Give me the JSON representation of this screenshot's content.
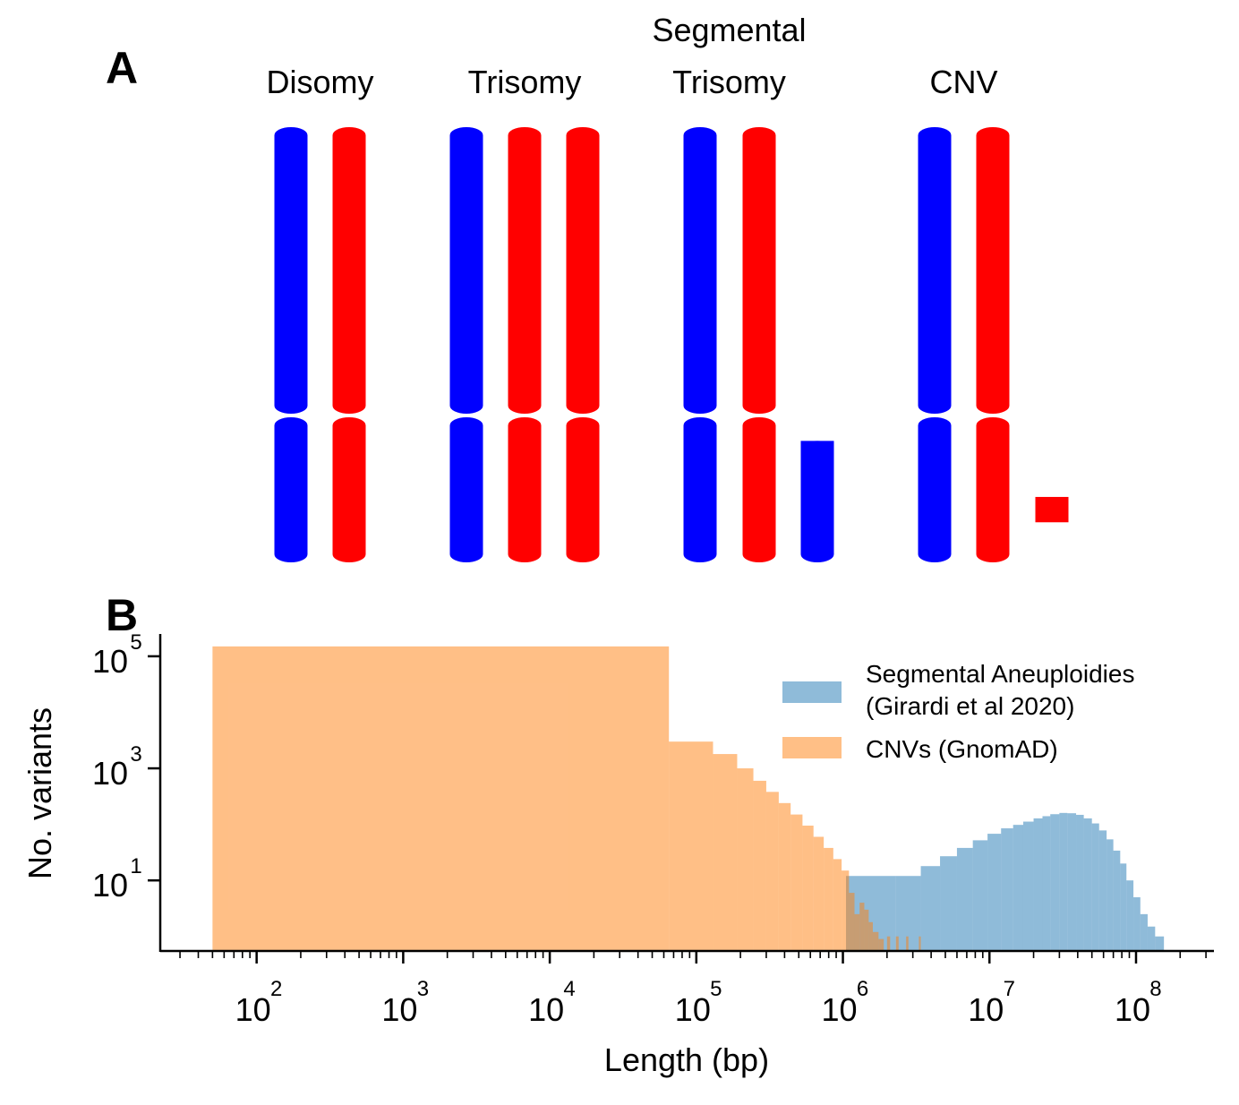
{
  "panel_a": {
    "label": "A",
    "groups": [
      {
        "title_lines": [
          "Disomy"
        ],
        "chromosomes": [
          {
            "color": "blue",
            "type": "full"
          },
          {
            "color": "red",
            "type": "full"
          }
        ]
      },
      {
        "title_lines": [
          "Trisomy"
        ],
        "chromosomes": [
          {
            "color": "blue",
            "type": "full"
          },
          {
            "color": "red",
            "type": "full"
          },
          {
            "color": "red",
            "type": "full"
          }
        ]
      },
      {
        "title_lines": [
          "Segmental",
          "Trisomy"
        ],
        "chromosomes": [
          {
            "color": "blue",
            "type": "full"
          },
          {
            "color": "red",
            "type": "full"
          },
          {
            "color": "blue",
            "type": "segment",
            "segment_start": 0.13,
            "segment_end": 1.0
          }
        ]
      },
      {
        "title_lines": [
          "CNV"
        ],
        "chromosomes": [
          {
            "color": "blue",
            "type": "full"
          },
          {
            "color": "red",
            "type": "full"
          },
          {
            "color": "red",
            "type": "segment",
            "segment_start": 0.55,
            "segment_end": 0.74
          }
        ]
      }
    ],
    "colors": {
      "blue": "#0000ff",
      "red": "#ff0000"
    }
  },
  "panel_b": {
    "label": "B",
    "chart_data": {
      "type": "histogram",
      "x_scale": "log",
      "y_scale": "log",
      "xlabel": "Length (bp)",
      "ylabel": "No. variants",
      "xlim": [
        22,
        340000000
      ],
      "ylim": [
        0.55,
        250000
      ],
      "x_ticks": [
        {
          "value": 100,
          "base": "10",
          "exp": "2"
        },
        {
          "value": 1000,
          "base": "10",
          "exp": "3"
        },
        {
          "value": 10000,
          "base": "10",
          "exp": "4"
        },
        {
          "value": 100000,
          "base": "10",
          "exp": "5"
        },
        {
          "value": 1000000,
          "base": "10",
          "exp": "6"
        },
        {
          "value": 10000000,
          "base": "10",
          "exp": "7"
        },
        {
          "value": 100000000,
          "base": "10",
          "exp": "8"
        }
      ],
      "y_ticks": [
        {
          "value": 10,
          "base": "10",
          "exp": "1"
        },
        {
          "value": 1000,
          "base": "10",
          "exp": "3"
        },
        {
          "value": 100000,
          "base": "10",
          "exp": "5"
        }
      ],
      "legend_position": "top-right",
      "series": [
        {
          "name": "Segmental Aneuploidies\n(Girardi et al 2020)",
          "legend_lines": [
            "Segmental Aneuploidies",
            "(Girardi et al 2020)"
          ],
          "color": "#1f77b4",
          "alpha": 0.5,
          "bins": [
            [
              1050000,
              2300000,
              12
            ],
            [
              2300000,
              3400000,
              12
            ],
            [
              3400000,
              4600000,
              18
            ],
            [
              4600000,
              6000000,
              27
            ],
            [
              6000000,
              7700000,
              38
            ],
            [
              7700000,
              9700000,
              52
            ],
            [
              9700000,
              12000000,
              68
            ],
            [
              12000000,
              14500000,
              85
            ],
            [
              14500000,
              17000000,
              98
            ],
            [
              17000000,
              20000000,
              112
            ],
            [
              20000000,
              23000000,
              128
            ],
            [
              23000000,
              26000000,
              140
            ],
            [
              26000000,
              30000000,
              152
            ],
            [
              30000000,
              34000000,
              160
            ],
            [
              34000000,
              39000000,
              158
            ],
            [
              39000000,
              44000000,
              148
            ],
            [
              44000000,
              50000000,
              128
            ],
            [
              50000000,
              56000000,
              104
            ],
            [
              56000000,
              63000000,
              78
            ],
            [
              63000000,
              70000000,
              54
            ],
            [
              70000000,
              78000000,
              34
            ],
            [
              78000000,
              86000000,
              20
            ],
            [
              86000000,
              96000000,
              10
            ],
            [
              96000000,
              107000000,
              5
            ],
            [
              107000000,
              120000000,
              2.5
            ],
            [
              120000000,
              135000000,
              1.5
            ],
            [
              135000000,
              155000000,
              1
            ]
          ]
        },
        {
          "name": "CNVs (GnomAD)",
          "legend_lines": [
            "CNVs (GnomAD)"
          ],
          "color": "#ff7f0e",
          "alpha": 0.5,
          "bins": [
            [
              50,
              65000,
              150000
            ],
            [
              65000,
              130000,
              3000
            ],
            [
              130000,
              190000,
              1800
            ],
            [
              190000,
              245000,
              1000
            ],
            [
              245000,
              300000,
              600
            ],
            [
              300000,
              365000,
              380
            ],
            [
              365000,
              440000,
              240
            ],
            [
              440000,
              530000,
              150
            ],
            [
              530000,
              630000,
              95
            ],
            [
              630000,
              740000,
              60
            ],
            [
              740000,
              860000,
              38
            ],
            [
              860000,
              980000,
              24
            ],
            [
              980000,
              1100000,
              15
            ],
            [
              1100000,
              1200000,
              6
            ],
            [
              1200000,
              1300000,
              2.5
            ],
            [
              1300000,
              1400000,
              4
            ],
            [
              1400000,
              1500000,
              3
            ],
            [
              1500000,
              1600000,
              1.8
            ],
            [
              1600000,
              1750000,
              1.2
            ],
            [
              1750000,
              1900000,
              0.9
            ],
            [
              2000000,
              2100000,
              1
            ],
            [
              2300000,
              2400000,
              1
            ],
            [
              2700000,
              2800000,
              1
            ],
            [
              3300000,
              3400000,
              1
            ]
          ]
        }
      ]
    }
  }
}
